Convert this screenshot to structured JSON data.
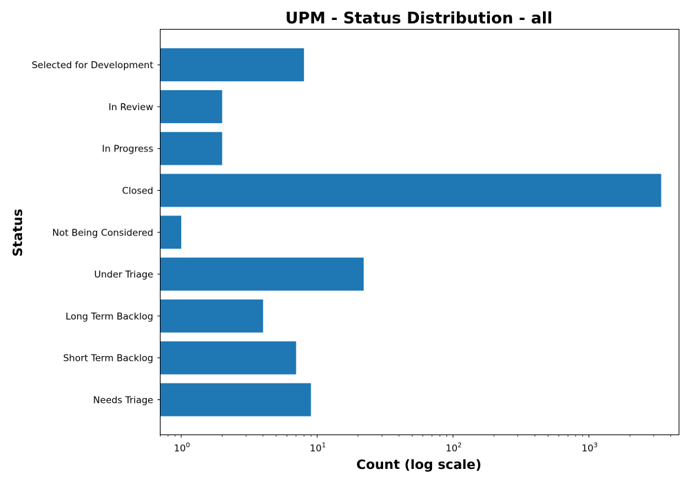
{
  "chart_data": {
    "type": "bar",
    "orientation": "horizontal",
    "title": "UPM - Status Distribution - all",
    "xlabel": "Count (log scale)",
    "ylabel": "Status",
    "xscale": "log",
    "xlim": [
      0.7,
      4600
    ],
    "xticks": [
      {
        "base": "10",
        "exp": "0",
        "value": 1
      },
      {
        "base": "10",
        "exp": "1",
        "value": 10
      },
      {
        "base": "10",
        "exp": "2",
        "value": 100
      },
      {
        "base": "10",
        "exp": "3",
        "value": 1000
      }
    ],
    "categories": [
      "Needs Triage",
      "Short Term Backlog",
      "Long Term Backlog",
      "Under Triage",
      "Not Being Considered",
      "Closed",
      "In Progress",
      "In Review",
      "Selected for Development"
    ],
    "values": [
      9,
      7,
      4,
      22,
      1,
      3400,
      2,
      2,
      8
    ],
    "bar_color": "#1f77b4",
    "grid": false,
    "legend": "none"
  }
}
